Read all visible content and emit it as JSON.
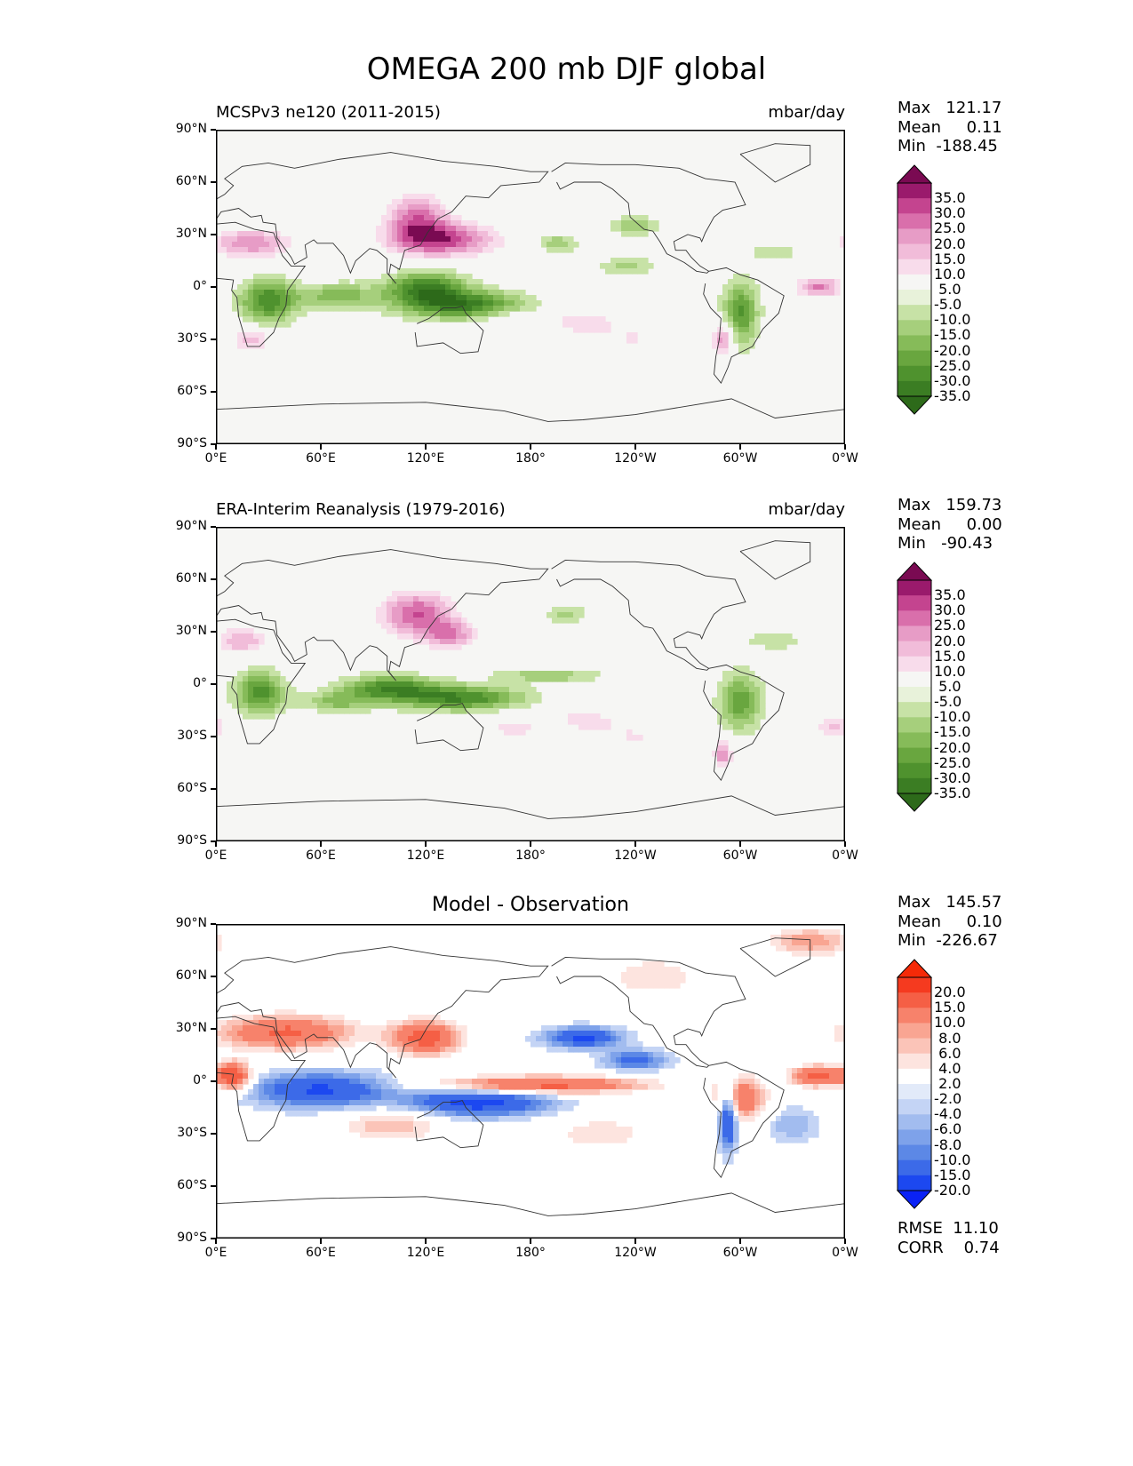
{
  "title": "OMEGA 200 mb DJF global",
  "xticks": [
    "0°E",
    "60°E",
    "120°E",
    "180°",
    "120°W",
    "60°W",
    "0°W"
  ],
  "yticks": [
    "90°N",
    "60°N",
    "30°N",
    "0°",
    "30°S",
    "60°S",
    "90°S"
  ],
  "panels": [
    {
      "left_title": "MCSPv3 ne120 (2011-2015)",
      "right_title": "mbar/day",
      "center_title": "",
      "stats": "Max   121.17\nMean     0.11\nMin  -188.45",
      "colorbar_labels": "35.0\n30.0\n25.0\n20.0\n15.0\n10.0\n 5.0\n-5.0\n-10.0\n-15.0\n-20.0\n-25.0\n-30.0\n-35.0",
      "colorbar": "PiYG"
    },
    {
      "left_title": "ERA-Interim Reanalysis (1979-2016)",
      "right_title": "mbar/day",
      "center_title": "",
      "stats": "Max   159.73\nMean     0.00\nMin   -90.43",
      "colorbar_labels": "35.0\n30.0\n25.0\n20.0\n15.0\n10.0\n 5.0\n-5.0\n-10.0\n-15.0\n-20.0\n-25.0\n-30.0\n-35.0",
      "colorbar": "PiYG"
    },
    {
      "left_title": "",
      "right_title": "",
      "center_title": "Model - Observation",
      "stats": "Max   145.57\nMean     0.10\nMin  -226.67",
      "colorbar_labels": "20.0\n15.0\n10.0\n 8.0\n 6.0\n 4.0\n 2.0\n-2.0\n-4.0\n-6.0\n-8.0\n-10.0\n-15.0\n-20.0",
      "colorbar": "diff",
      "footer": "RMSE  11.10\nCORR    0.74"
    }
  ],
  "chart_data": {
    "type": "heatmap",
    "title": "OMEGA 200 mb DJF global",
    "variable": "OMEGA 200 mb",
    "season": "DJF",
    "units": "mbar/day",
    "xlim": [
      "0°E",
      "0°W"
    ],
    "ylim": [
      "90°S",
      "90°N"
    ],
    "panels": [
      {
        "name": "MCSPv3 ne120 (2011-2015)",
        "max": 121.17,
        "mean": 0.11,
        "min": -188.45,
        "levels": [
          -35,
          -30,
          -25,
          -20,
          -15,
          -10,
          -5,
          5,
          10,
          15,
          20,
          25,
          30,
          35
        ]
      },
      {
        "name": "ERA-Interim Reanalysis (1979-2016)",
        "max": 159.73,
        "mean": 0.0,
        "min": -90.43,
        "levels": [
          -35,
          -30,
          -25,
          -20,
          -15,
          -10,
          -5,
          5,
          10,
          15,
          20,
          25,
          30,
          35
        ]
      },
      {
        "name": "Model - Observation",
        "max": 145.57,
        "mean": 0.1,
        "min": -226.67,
        "levels": [
          -20,
          -15,
          -10,
          -8,
          -6,
          -4,
          -2,
          2,
          4,
          6,
          8,
          10,
          15,
          20
        ],
        "rmse": 11.1,
        "corr": 0.74
      }
    ],
    "colors": {
      "piyg": [
        "#2d6a1a",
        "#3b7d23",
        "#4f922e",
        "#69a63f",
        "#86bb59",
        "#a6cf7c",
        "#c7e2a6",
        "#e8f2da",
        "#f6f6f4",
        "#f8dceb",
        "#f1bcd9",
        "#e79cc6",
        "#d96fab",
        "#c4448f",
        "#9a1a6c",
        "#7a0a52"
      ],
      "diff": [
        "#0a22f5",
        "#1c48f0",
        "#3c6ae8",
        "#5c88e6",
        "#7ea2ea",
        "#a2bcef",
        "#c4d4f5",
        "#e2eaf9",
        "#ffffff",
        "#fde4df",
        "#fbc4b8",
        "#f9a592",
        "#f7826b",
        "#f55f45",
        "#f53a1f",
        "#f52a08"
      ]
    }
  }
}
